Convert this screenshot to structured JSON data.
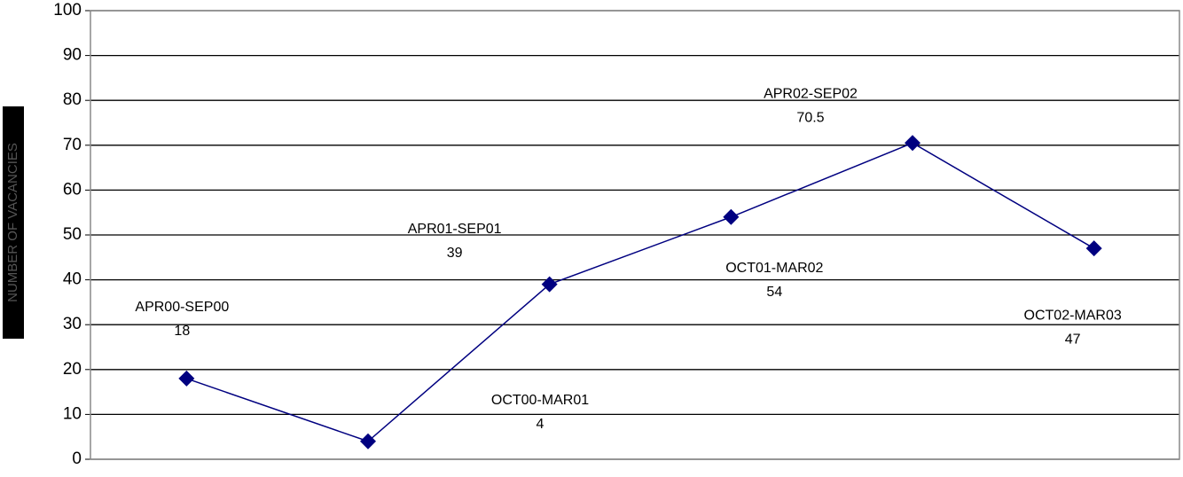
{
  "chart_data": {
    "type": "line",
    "y_label": "NUMBER OF VACANCIES",
    "categories": [
      "APR00-SEP00",
      "OCT00-MAR01",
      "APR01-SEP01",
      "OCT01-MAR02",
      "APR02-SEP02",
      "OCT02-MAR03"
    ],
    "series": [
      {
        "color": "#000080",
        "values": [
          18,
          4,
          39,
          54,
          70.5,
          47
        ]
      }
    ],
    "ylim": [
      0,
      100
    ],
    "yticks": [
      0,
      10,
      20,
      30,
      40,
      50,
      60,
      70,
      80,
      90,
      100
    ],
    "grid": true
  }
}
